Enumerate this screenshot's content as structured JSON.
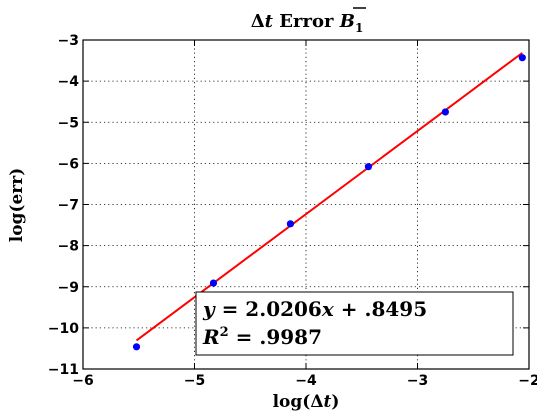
{
  "chart_data": {
    "type": "scatter",
    "title": {
      "prefix": "Δ",
      "prefix_var": "t",
      "middle": " Error ",
      "var": "B",
      "sub": "1"
    },
    "xlabel": {
      "text": "log(",
      "delta": "Δ",
      "var": "t",
      "close": ")"
    },
    "ylabel": "log(err)",
    "xlim": [
      -6,
      -2
    ],
    "ylim": [
      -11,
      -3
    ],
    "xticks": [
      -6,
      -5,
      -4,
      -3,
      -2
    ],
    "xtick_labels": [
      "−6",
      "−5",
      "−4",
      "−3",
      "−2"
    ],
    "yticks": [
      -3,
      -4,
      -5,
      -6,
      -7,
      -8,
      -9,
      -10,
      -11
    ],
    "ytick_labels": [
      "−3",
      "−4",
      "−5",
      "−6",
      "−7",
      "−8",
      "−9",
      "−10",
      "−11"
    ],
    "grid": true,
    "series": [
      {
        "kind": "points",
        "color": "#0000ff",
        "x": [
          -5.52,
          -4.83,
          -4.14,
          -3.44,
          -2.75,
          -2.06
        ],
        "y": [
          -10.46,
          -8.91,
          -7.47,
          -6.08,
          -4.75,
          -3.43
        ]
      },
      {
        "kind": "fit-line",
        "color": "#ff0000",
        "slope": 2.0206,
        "intercept": 0.8495,
        "x_range": [
          -5.52,
          -2.06
        ]
      }
    ],
    "annotation": {
      "line1_lhs": "y",
      "line1_eq": " = 2.0206",
      "line1_x": "x",
      "line1_rest": " + .8495",
      "line2_lhs": "R",
      "line2_sup": "2",
      "line2_rest": " = .9987"
    }
  }
}
